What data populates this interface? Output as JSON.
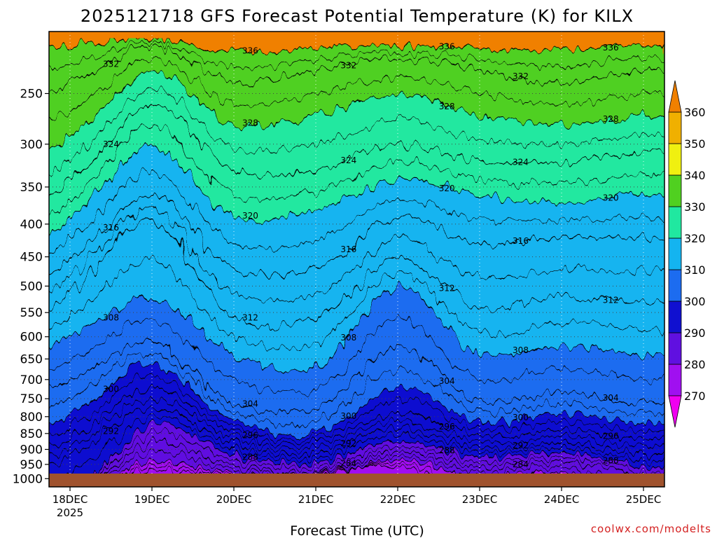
{
  "chart_data": {
    "type": "heatmap",
    "title": "2025121718 GFS Forecast Potential Temperature (K) for KILX",
    "xlabel": "Forecast Time (UTC)",
    "credit": "coolwx.com/modelts",
    "y_axis": {
      "scale": "pressure (log)",
      "range_hPa": [
        1030,
        200
      ],
      "ticks": [
        "250",
        "300",
        "350",
        "400",
        "450",
        "500",
        "550",
        "600",
        "650",
        "700",
        "750",
        "800",
        "850",
        "900",
        "950",
        "1000"
      ],
      "grid": "dotted"
    },
    "x_axis": {
      "ticks": [
        {
          "label": "18DEC",
          "sub": "2025"
        },
        {
          "label": "19DEC",
          "sub": ""
        },
        {
          "label": "20DEC",
          "sub": ""
        },
        {
          "label": "21DEC",
          "sub": ""
        },
        {
          "label": "22DEC",
          "sub": ""
        },
        {
          "label": "23DEC",
          "sub": ""
        },
        {
          "label": "24DEC",
          "sub": ""
        },
        {
          "label": "25DEC",
          "sub": ""
        }
      ],
      "grid": "dotted"
    },
    "colorbar": {
      "levels": [
        "270",
        "280",
        "290",
        "300",
        "310",
        "320",
        "330",
        "340",
        "350",
        "360"
      ],
      "colors": [
        "#f000f0",
        "#a010f0",
        "#6010e0",
        "#1010d0",
        "#1c6cf0",
        "#14b4f0",
        "#20e8a0",
        "#50d020",
        "#f0f010",
        "#f0b000",
        "#f08000"
      ],
      "extend": "both"
    },
    "isentropes_K": [
      276,
      280,
      284,
      288,
      292,
      296,
      300,
      304,
      308,
      312,
      316,
      320,
      324,
      328,
      332,
      336
    ],
    "isentrope_pressure_hPa": {
      "times": [
        "18DEC",
        "19DEC",
        "20DEC",
        "21DEC",
        "22DEC",
        "23DEC",
        "24DEC",
        "25DEC"
      ],
      "276": [
        null,
        970,
        1000,
        null,
        960,
        null,
        null,
        null
      ],
      "280": [
        null,
        940,
        985,
        995,
        935,
        995,
        980,
        null
      ],
      "284": [
        null,
        880,
        955,
        975,
        905,
        960,
        940,
        990
      ],
      "288": [
        null,
        820,
        920,
        945,
        870,
        925,
        910,
        955
      ],
      "292": [
        915,
        770,
        885,
        915,
        830,
        895,
        880,
        915
      ],
      "296": [
        860,
        720,
        850,
        880,
        790,
        855,
        840,
        870
      ],
      "300": [
        790,
        660,
        810,
        850,
        720,
        815,
        790,
        820
      ],
      "304": [
        700,
        610,
        760,
        780,
        620,
        760,
        730,
        760
      ],
      "308": [
        600,
        520,
        640,
        670,
        500,
        640,
        620,
        640
      ],
      "312": [
        510,
        390,
        560,
        560,
        450,
        540,
        520,
        530
      ],
      "316": [
        450,
        360,
        470,
        470,
        390,
        430,
        420,
        420
      ],
      "320": [
        390,
        300,
        390,
        380,
        340,
        360,
        370,
        360
      ],
      "324": [
        340,
        260,
        330,
        330,
        300,
        320,
        320,
        310
      ],
      "328": [
        290,
        230,
        280,
        270,
        250,
        270,
        280,
        270
      ],
      "332": [
        240,
        210,
        240,
        230,
        220,
        230,
        240,
        230
      ],
      "336": [
        210,
        205,
        215,
        212,
        210,
        212,
        215,
        210
      ]
    }
  }
}
